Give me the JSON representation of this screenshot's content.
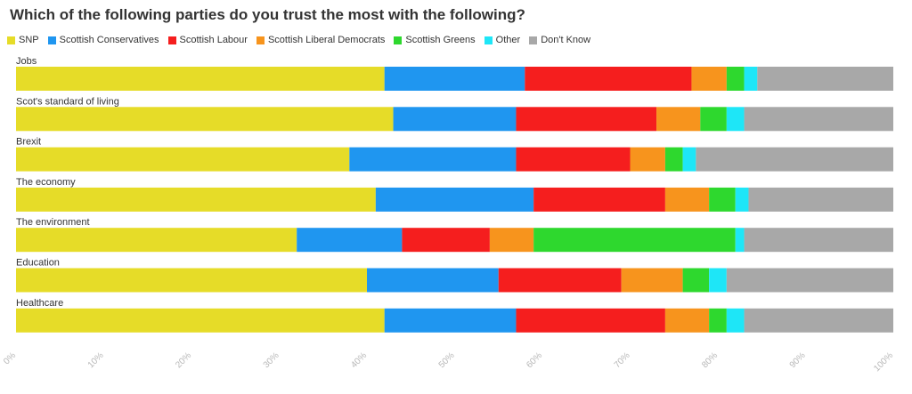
{
  "title": "Which of the following parties do you trust the most with the following?",
  "legend": [
    {
      "label": "SNP",
      "color": "#e6dc28"
    },
    {
      "label": "Scottish Conservatives",
      "color": "#1f96f0"
    },
    {
      "label": "Scottish Labour",
      "color": "#f51e1e"
    },
    {
      "label": "Scottish Liberal Democrats",
      "color": "#f7941d"
    },
    {
      "label": "Scottish Greens",
      "color": "#2ed82e"
    },
    {
      "label": "Other",
      "color": "#1ee6f7"
    },
    {
      "label": "Don't Know",
      "color": "#a8a8a8"
    }
  ],
  "chart_data": {
    "type": "bar",
    "orientation": "horizontal",
    "stacked": true,
    "title": "Which of the following parties do you trust the most with the following?",
    "categories": [
      "Jobs",
      "Scot's standard of living",
      "Brexit",
      "The economy",
      "The environment",
      "Education",
      "Healthcare"
    ],
    "series": [
      {
        "name": "SNP",
        "color": "#e6dc28",
        "values": [
          42,
          43,
          38,
          41,
          32,
          40,
          42
        ]
      },
      {
        "name": "Scottish Conservatives",
        "color": "#1f96f0",
        "values": [
          16,
          14,
          19,
          18,
          12,
          15,
          15
        ]
      },
      {
        "name": "Scottish Labour",
        "color": "#f51e1e",
        "values": [
          19,
          16,
          13,
          15,
          10,
          14,
          17
        ]
      },
      {
        "name": "Scottish Liberal Democrats",
        "color": "#f7941d",
        "values": [
          4,
          5,
          4,
          5,
          5,
          7,
          5
        ]
      },
      {
        "name": "Scottish Greens",
        "color": "#2ed82e",
        "values": [
          2,
          3,
          2,
          3,
          23,
          3,
          2
        ]
      },
      {
        "name": "Other",
        "color": "#1ee6f7",
        "values": [
          1.5,
          2,
          1.5,
          1.5,
          1,
          2,
          2
        ]
      },
      {
        "name": "Don't Know",
        "color": "#a8a8a8",
        "values": [
          15.5,
          17,
          22.5,
          16.5,
          17,
          19,
          17
        ]
      }
    ],
    "xlim": [
      0,
      100
    ],
    "xticks": [
      "0%",
      "10%",
      "20%",
      "30%",
      "40%",
      "50%",
      "60%",
      "70%",
      "80%",
      "90%",
      "100%"
    ],
    "grid": false,
    "legend_position": "top-left"
  }
}
